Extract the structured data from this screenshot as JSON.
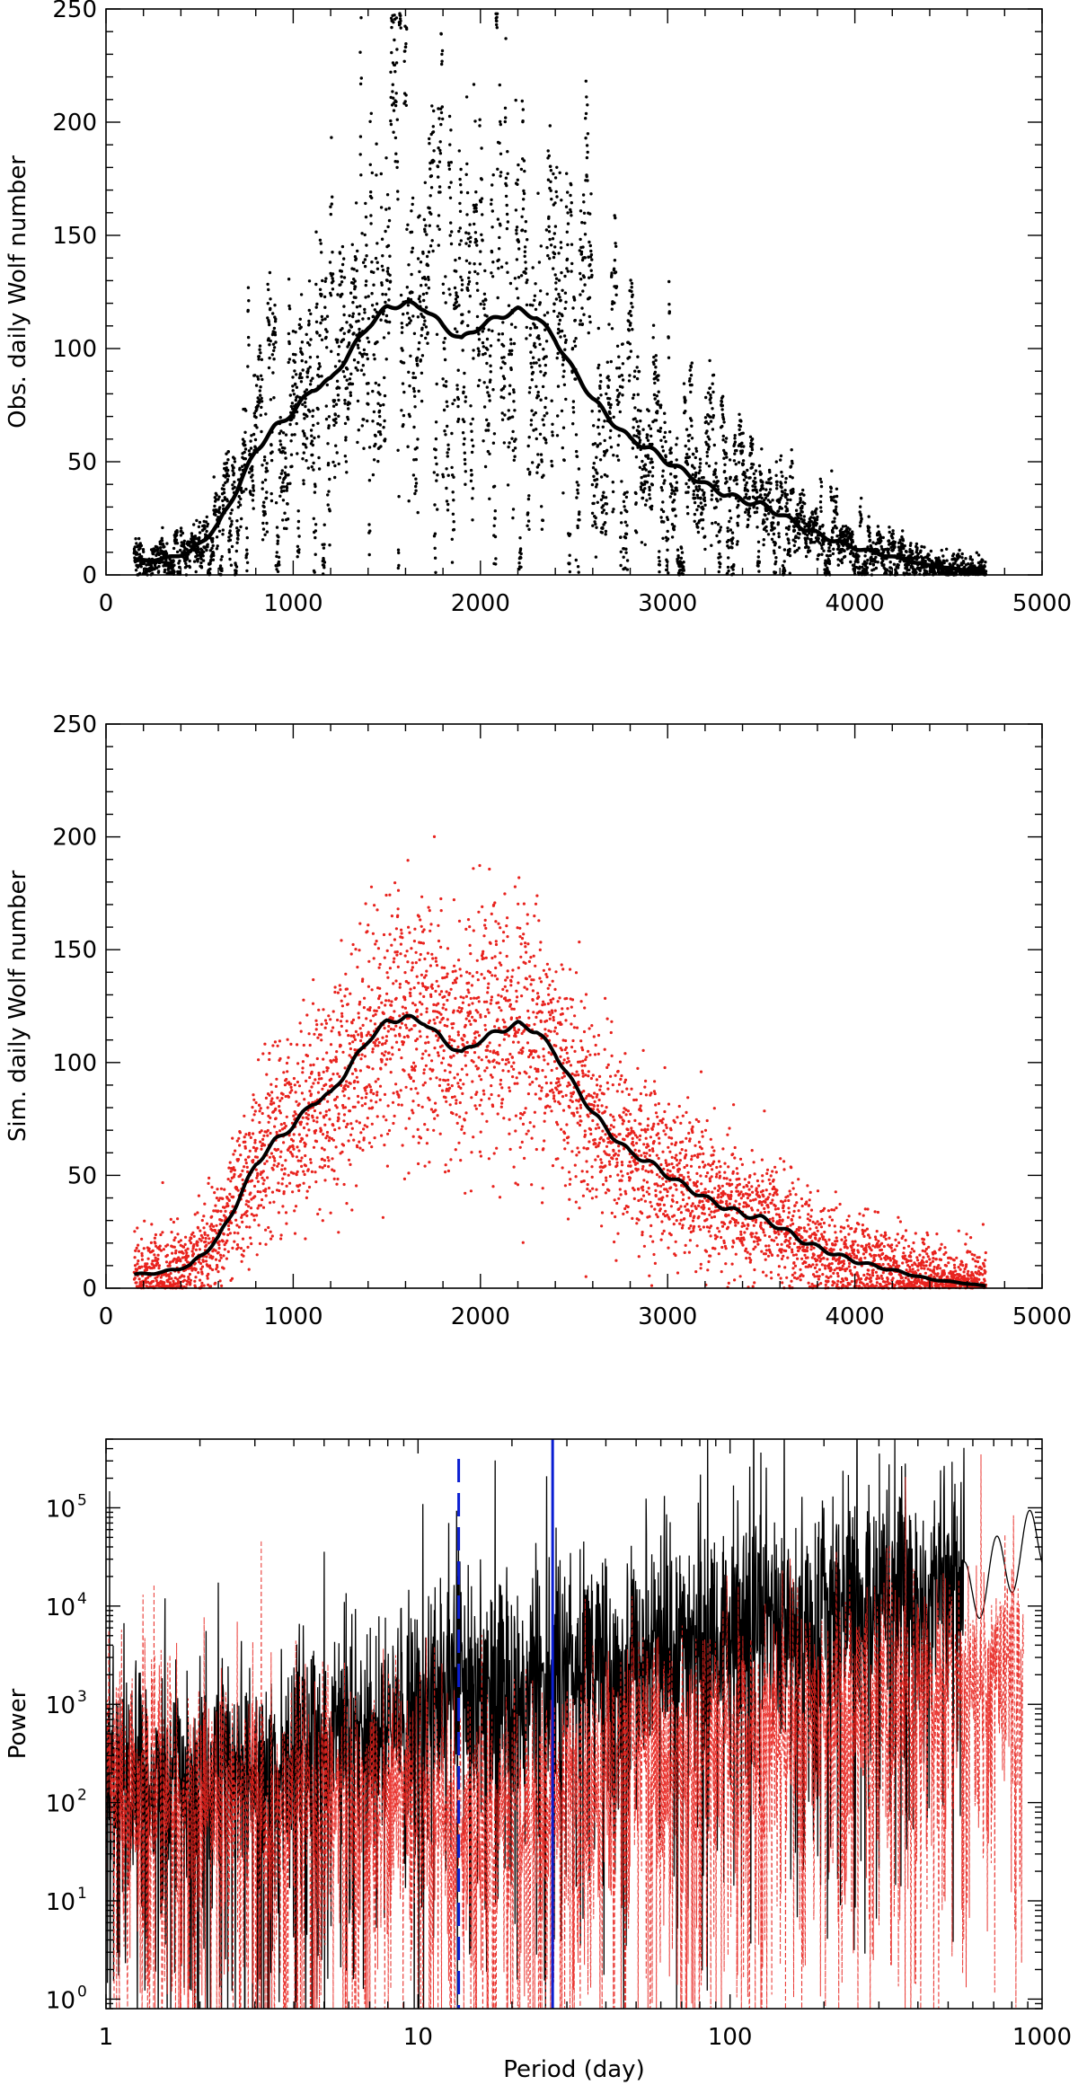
{
  "chart_data": [
    {
      "type": "scatter",
      "title": "",
      "xlabel": "",
      "ylabel": "Obs. daily Wolf number",
      "xlim": [
        0,
        5000
      ],
      "ylim": [
        0,
        250
      ],
      "xticks": [
        "0",
        "1000",
        "2000",
        "3000",
        "4000",
        "5000"
      ],
      "yticks": [
        "0",
        "50",
        "100",
        "150",
        "200",
        "250"
      ],
      "grid": false,
      "series": [
        {
          "kind": "points",
          "color": "#000000",
          "x_range": [
            150,
            4700
          ],
          "spread": "large"
        },
        {
          "kind": "smoothed-line",
          "color": "#000000",
          "x": [
            150,
            300,
            450,
            600,
            700,
            800,
            900,
            1000,
            1100,
            1200,
            1300,
            1400,
            1500,
            1600,
            1700,
            1800,
            1900,
            2000,
            2100,
            2200,
            2300,
            2400,
            2500,
            2600,
            2700,
            2800,
            2900,
            3000,
            3100,
            3200,
            3300,
            3400,
            3500,
            3600,
            3700,
            3800,
            3900,
            4000,
            4100,
            4200,
            4300,
            4400,
            4500,
            4600,
            4700
          ],
          "y": [
            6,
            7,
            10,
            22,
            38,
            55,
            65,
            72,
            82,
            86,
            98,
            110,
            118,
            120,
            118,
            110,
            104,
            110,
            114,
            117,
            114,
            104,
            90,
            78,
            68,
            60,
            56,
            50,
            45,
            40,
            36,
            33,
            31,
            27,
            22,
            18,
            15,
            12,
            10,
            8,
            6,
            4,
            3,
            2,
            1
          ]
        }
      ]
    },
    {
      "type": "scatter",
      "title": "",
      "xlabel": "",
      "ylabel": "Sim. daily Wolf number",
      "xlim": [
        0,
        5000
      ],
      "ylim": [
        0,
        250
      ],
      "xticks": [
        "0",
        "1000",
        "2000",
        "3000",
        "4000",
        "5000"
      ],
      "yticks": [
        "0",
        "50",
        "100",
        "150",
        "200",
        "250"
      ],
      "grid": false,
      "series": [
        {
          "kind": "points",
          "color": "#e8231e",
          "x_range": [
            150,
            4700
          ],
          "spread": "moderate"
        },
        {
          "kind": "smoothed-line",
          "color": "#000000",
          "x": [
            150,
            300,
            450,
            600,
            700,
            800,
            900,
            1000,
            1100,
            1200,
            1300,
            1400,
            1500,
            1600,
            1700,
            1800,
            1900,
            2000,
            2100,
            2200,
            2300,
            2400,
            2500,
            2600,
            2700,
            2800,
            2900,
            3000,
            3100,
            3200,
            3300,
            3400,
            3500,
            3600,
            3700,
            3800,
            3900,
            4000,
            4100,
            4200,
            4300,
            4400,
            4500,
            4600,
            4700
          ],
          "y": [
            6,
            7,
            10,
            22,
            38,
            55,
            65,
            72,
            82,
            86,
            98,
            110,
            118,
            120,
            118,
            110,
            104,
            110,
            114,
            117,
            114,
            104,
            90,
            78,
            68,
            60,
            56,
            50,
            45,
            40,
            36,
            33,
            31,
            27,
            22,
            18,
            15,
            12,
            10,
            8,
            6,
            4,
            3,
            2,
            1
          ]
        }
      ]
    },
    {
      "type": "line",
      "title": "",
      "xlabel": "Period (day)",
      "ylabel": "Power",
      "xscale": "log",
      "yscale": "log",
      "xlim": [
        1,
        1000
      ],
      "ylim": [
        0.8,
        500000
      ],
      "xticks": [
        "1",
        "10",
        "100",
        "1000"
      ],
      "yticks": [
        {
          "base": "10",
          "exp": "0"
        },
        {
          "base": "10",
          "exp": "1"
        },
        {
          "base": "10",
          "exp": "2"
        },
        {
          "base": "10",
          "exp": "3"
        },
        {
          "base": "10",
          "exp": "4"
        },
        {
          "base": "10",
          "exp": "5"
        }
      ],
      "grid": false,
      "series": [
        {
          "kind": "spectrum",
          "color": "#000000",
          "style": "solid"
        },
        {
          "kind": "spectrum",
          "color": "#e8231e",
          "style": "dashed"
        }
      ],
      "vertical_lines": [
        {
          "x": 13.5,
          "color": "#0a1ed2",
          "style": "dashed"
        },
        {
          "x": 27,
          "color": "#0a1ed2",
          "style": "solid"
        }
      ]
    }
  ]
}
